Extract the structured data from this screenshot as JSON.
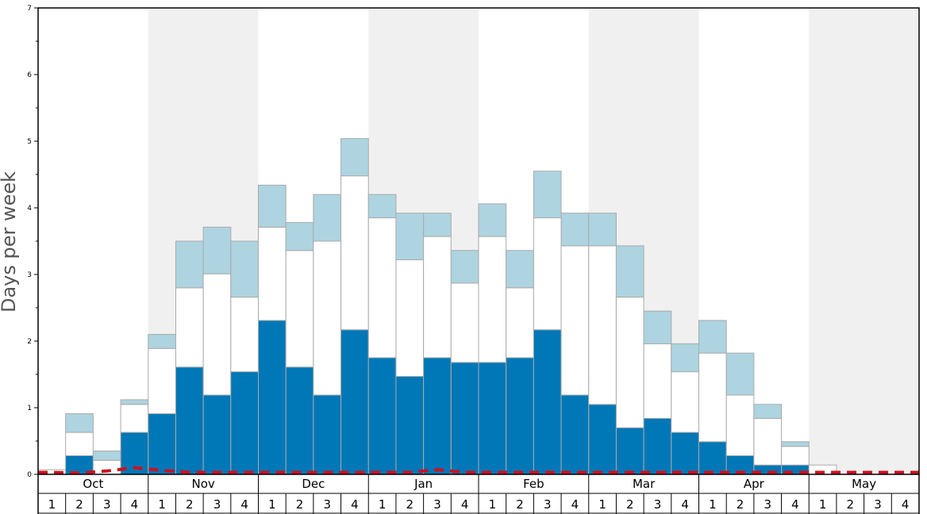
{
  "chart_data": {
    "type": "bar",
    "ylabel": "Days per week",
    "ylim": [
      0,
      7
    ],
    "yticks": [
      "0",
      "1",
      "2",
      "3",
      "4",
      "5",
      "6",
      "7"
    ],
    "months": [
      "Oct",
      "Nov",
      "Dec",
      "Jan",
      "Feb",
      "Mar",
      "Apr",
      "May"
    ],
    "week_labels": [
      "1",
      "2",
      "3",
      "4"
    ],
    "colors": {
      "bottom": "#0077b6",
      "middle": "#ffffff",
      "top": "#add4e0",
      "line": "#cc1122",
      "shade": "#f0f0f0",
      "bar_edge": "#aaaaaa"
    },
    "series": [
      {
        "values": [
          0.0,
          0.28,
          0.0,
          0.63,
          0.91,
          1.61,
          1.19,
          1.54,
          2.31,
          1.61,
          1.19,
          2.17,
          1.75,
          1.47,
          1.75,
          1.68,
          1.68,
          1.75,
          2.17,
          1.19,
          1.05,
          0.7,
          0.84,
          0.63,
          0.49,
          0.28,
          0.14,
          0.14,
          0.0,
          0.0,
          0.0,
          0.0
        ]
      },
      {
        "values": [
          0.07,
          0.35,
          0.21,
          0.42,
          0.98,
          1.19,
          1.82,
          1.12,
          1.4,
          1.75,
          2.31,
          2.31,
          2.1,
          1.75,
          1.82,
          1.19,
          1.89,
          1.05,
          1.68,
          2.24,
          2.38,
          1.96,
          1.12,
          0.91,
          1.33,
          0.91,
          0.7,
          0.28,
          0.14,
          0.0,
          0.0,
          0.0
        ]
      },
      {
        "values": [
          0.0,
          0.28,
          0.14,
          0.07,
          0.21,
          0.7,
          0.7,
          0.84,
          0.63,
          0.42,
          0.7,
          0.56,
          0.35,
          0.7,
          0.35,
          0.49,
          0.49,
          0.56,
          0.7,
          0.49,
          0.49,
          0.77,
          0.49,
          0.42,
          0.49,
          0.63,
          0.21,
          0.07,
          0.0,
          0.0,
          0.0,
          0.0
        ]
      },
      {
        "type": "line",
        "style": "dashed",
        "values": [
          0.03,
          0.02,
          0.05,
          0.1,
          0.06,
          0.03,
          0.03,
          0.03,
          0.03,
          0.03,
          0.03,
          0.03,
          0.03,
          0.03,
          0.07,
          0.03,
          0.03,
          0.03,
          0.03,
          0.03,
          0.03,
          0.03,
          0.03,
          0.03,
          0.03,
          0.03,
          0.03,
          0.03,
          0.03,
          0.03,
          0.03,
          0.03
        ]
      }
    ]
  }
}
